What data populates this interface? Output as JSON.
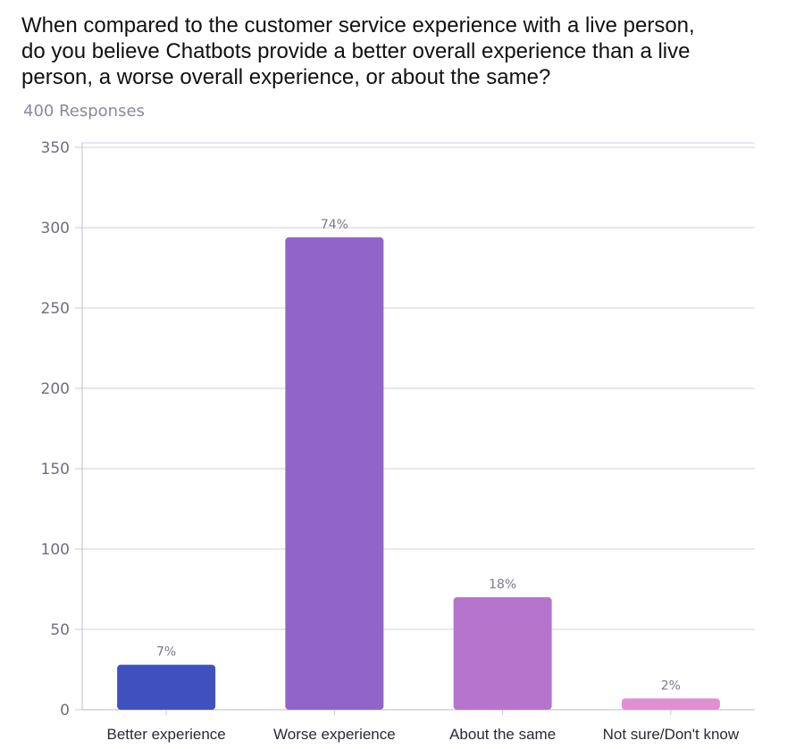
{
  "title_lines": [
    "When compared to the customer service experience with a live person,",
    "do you believe Chatbots provide a better overall experience than a live",
    "person, a worse overall experience, or about the same?"
  ],
  "subtitle": "400 Responses",
  "chart_data": {
    "type": "bar",
    "title": "When compared to the customer service experience with a live person, do you believe Chatbots provide a better overall experience than a live person, a worse overall experience, or about the same?",
    "subtitle": "400 Responses",
    "categories": [
      "Better experience",
      "Worse experience",
      "About the same",
      "Not sure/Don't know"
    ],
    "values": [
      28,
      294,
      70,
      7
    ],
    "data_labels": [
      "7%",
      "74%",
      "18%",
      "2%"
    ],
    "colors": [
      "#3f51bf",
      "#9165c8",
      "#b674cd",
      "#e08fd3"
    ],
    "yticks": [
      0,
      50,
      100,
      150,
      200,
      250,
      300,
      350
    ],
    "ylim": [
      0,
      350
    ],
    "xlabel": "",
    "ylabel": "",
    "grid": true
  }
}
